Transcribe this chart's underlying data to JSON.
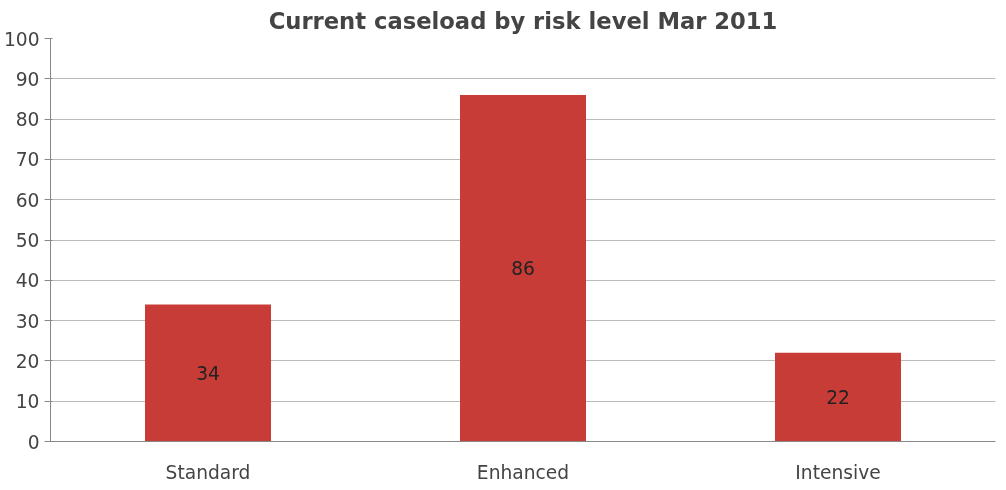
{
  "chart_data": {
    "type": "bar",
    "title": "Current caseload by risk level Mar 2011",
    "categories": [
      "Standard",
      "Enhanced",
      "Intensive"
    ],
    "values": [
      34,
      86,
      22
    ],
    "color": "#c83c37",
    "ylim": [
      0,
      100
    ],
    "yticks": [
      0,
      10,
      20,
      30,
      40,
      50,
      60,
      70,
      80,
      90,
      100
    ],
    "grid": "y",
    "data_labels": true
  }
}
